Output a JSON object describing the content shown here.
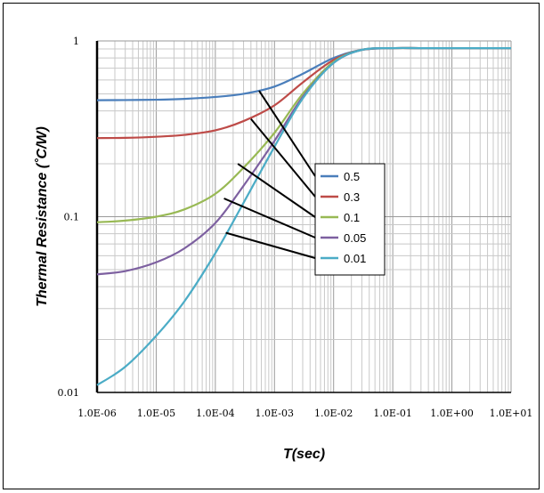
{
  "chart_data": {
    "type": "line",
    "xlabel": "T(sec)",
    "ylabel": "Thermal Resistance  (˚C/W)",
    "x_scale": "log",
    "y_scale": "log",
    "xlim": [
      1e-06,
      10
    ],
    "ylim": [
      0.01,
      1
    ],
    "grid": true,
    "legend_position": "center",
    "x_ticks": [
      {
        "value": 1e-06,
        "label": "1.0E-06"
      },
      {
        "value": 1e-05,
        "label": "1.0E-05"
      },
      {
        "value": 0.0001,
        "label": "1.0E-04"
      },
      {
        "value": 0.001,
        "label": "1.0E-03"
      },
      {
        "value": 0.01,
        "label": "1.0E-02"
      },
      {
        "value": 0.1,
        "label": "1.0E-01"
      },
      {
        "value": 1,
        "label": "1.0E+00"
      },
      {
        "value": 10,
        "label": "1.0E+01"
      }
    ],
    "y_ticks": [
      {
        "value": 0.01,
        "label": "0.01"
      },
      {
        "value": 0.1,
        "label": "0.1"
      },
      {
        "value": 1,
        "label": "1"
      }
    ],
    "x": [
      1e-06,
      3e-06,
      1e-05,
      3e-05,
      0.0001,
      0.0003,
      0.001,
      0.003,
      0.01,
      0.03,
      0.1,
      0.3,
      1,
      3,
      10
    ],
    "series": [
      {
        "name": "0.5",
        "color": "#4a7ebb",
        "values": [
          0.46,
          0.461,
          0.463,
          0.468,
          0.48,
          0.5,
          0.55,
          0.65,
          0.8,
          0.89,
          0.91,
          0.91,
          0.91,
          0.91,
          0.91
        ]
      },
      {
        "name": "0.3",
        "color": "#be4b48",
        "values": [
          0.28,
          0.281,
          0.285,
          0.292,
          0.31,
          0.35,
          0.43,
          0.58,
          0.78,
          0.89,
          0.91,
          0.91,
          0.91,
          0.91,
          0.91
        ]
      },
      {
        "name": "0.1",
        "color": "#98b954",
        "values": [
          0.093,
          0.095,
          0.1,
          0.11,
          0.135,
          0.19,
          0.3,
          0.5,
          0.76,
          0.89,
          0.91,
          0.91,
          0.91,
          0.91,
          0.91
        ]
      },
      {
        "name": "0.05",
        "color": "#7d60a0",
        "values": [
          0.047,
          0.049,
          0.055,
          0.066,
          0.092,
          0.15,
          0.27,
          0.48,
          0.75,
          0.89,
          0.91,
          0.91,
          0.91,
          0.91,
          0.91
        ]
      },
      {
        "name": "0.01",
        "color": "#4bacc6",
        "values": [
          0.011,
          0.014,
          0.021,
          0.033,
          0.062,
          0.12,
          0.25,
          0.47,
          0.75,
          0.89,
          0.91,
          0.91,
          0.91,
          0.91,
          0.91
        ]
      }
    ],
    "leaders": [
      {
        "series": "0.5",
        "x": 0.00055,
        "y": 0.52
      },
      {
        "series": "0.3",
        "x": 0.0004,
        "y": 0.36
      },
      {
        "series": "0.1",
        "x": 0.00024,
        "y": 0.2
      },
      {
        "series": "0.05",
        "x": 0.00014,
        "y": 0.127
      },
      {
        "series": "0.01",
        "x": 0.00015,
        "y": 0.081
      }
    ]
  }
}
